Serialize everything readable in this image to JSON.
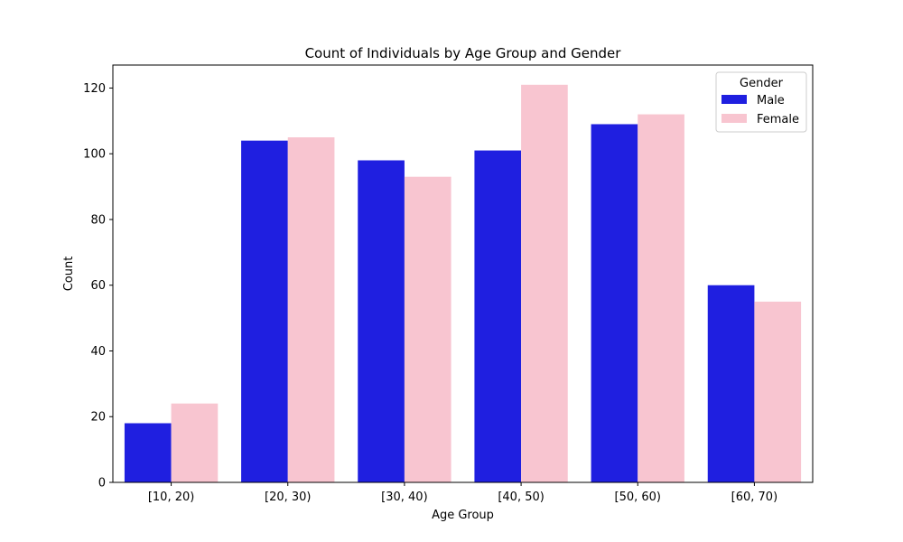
{
  "chart_data": {
    "type": "bar",
    "title": "Count of Individuals by Age Group and Gender",
    "xlabel": "Age Group",
    "ylabel": "Count",
    "categories": [
      "[10, 20)",
      "[20, 30)",
      "[30, 40)",
      "[40, 50)",
      "[50, 60)",
      "[60, 70)"
    ],
    "series": [
      {
        "name": "Male",
        "color": "#1f1fe0",
        "values": [
          18,
          104,
          98,
          101,
          109,
          60
        ]
      },
      {
        "name": "Female",
        "color": "#f8c5d0",
        "values": [
          24,
          105,
          93,
          121,
          112,
          55
        ]
      }
    ],
    "ylim": [
      0,
      127
    ],
    "yticks": [
      0,
      20,
      40,
      60,
      80,
      100,
      120
    ],
    "grid": false,
    "legend": {
      "title": "Gender",
      "placement": "top-right"
    }
  }
}
